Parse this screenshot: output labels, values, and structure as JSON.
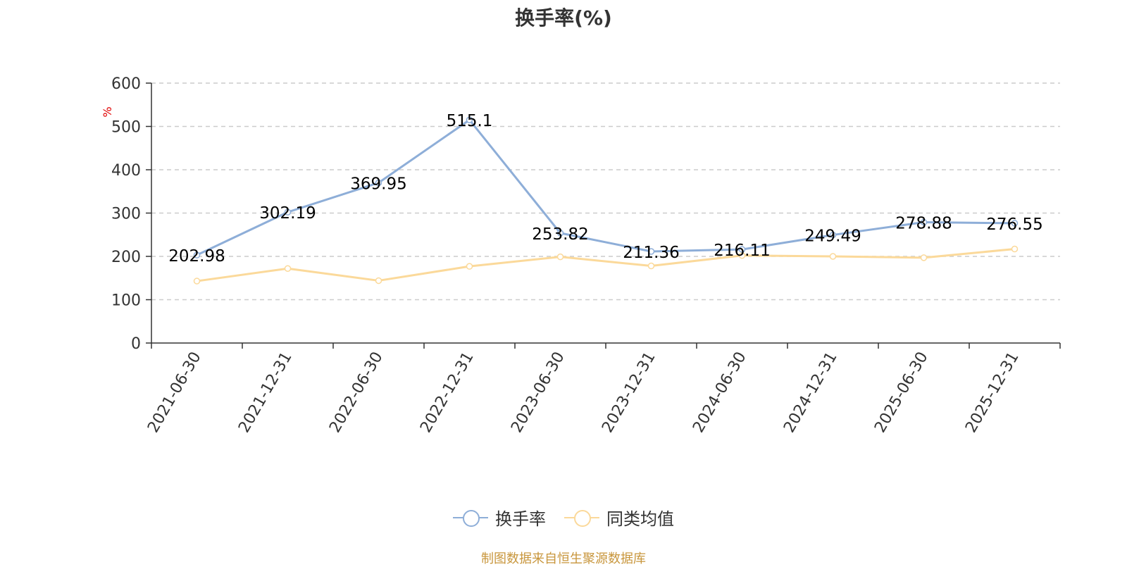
{
  "chart_data": {
    "type": "line",
    "title": "换手率(%)",
    "ylabel": "%",
    "xlabel": "",
    "categories": [
      "2021-06-30",
      "2021-12-31",
      "2022-06-30",
      "2022-12-31",
      "2023-06-30",
      "2023-12-31",
      "2024-06-30",
      "2024-12-31",
      "2025-06-30",
      "2025-12-31"
    ],
    "ylim": [
      0,
      600
    ],
    "yticks": [
      0,
      100,
      200,
      300,
      400,
      500,
      600
    ],
    "grid": true,
    "legend_position": "bottom",
    "series": [
      {
        "name": "换手率",
        "color": "#8eaed8",
        "show_labels": true,
        "values": [
          202.98,
          302.19,
          369.95,
          515.1,
          253.82,
          211.36,
          216.11,
          249.49,
          278.88,
          276.55
        ]
      },
      {
        "name": "同类均值",
        "color": "#fbd99a",
        "show_labels": false,
        "values": [
          143,
          172,
          144,
          177,
          199,
          178,
          202,
          200,
          197,
          217
        ]
      }
    ]
  },
  "source": {
    "text": "制图数据来自恒生聚源数据库",
    "color": "#c8963c"
  }
}
